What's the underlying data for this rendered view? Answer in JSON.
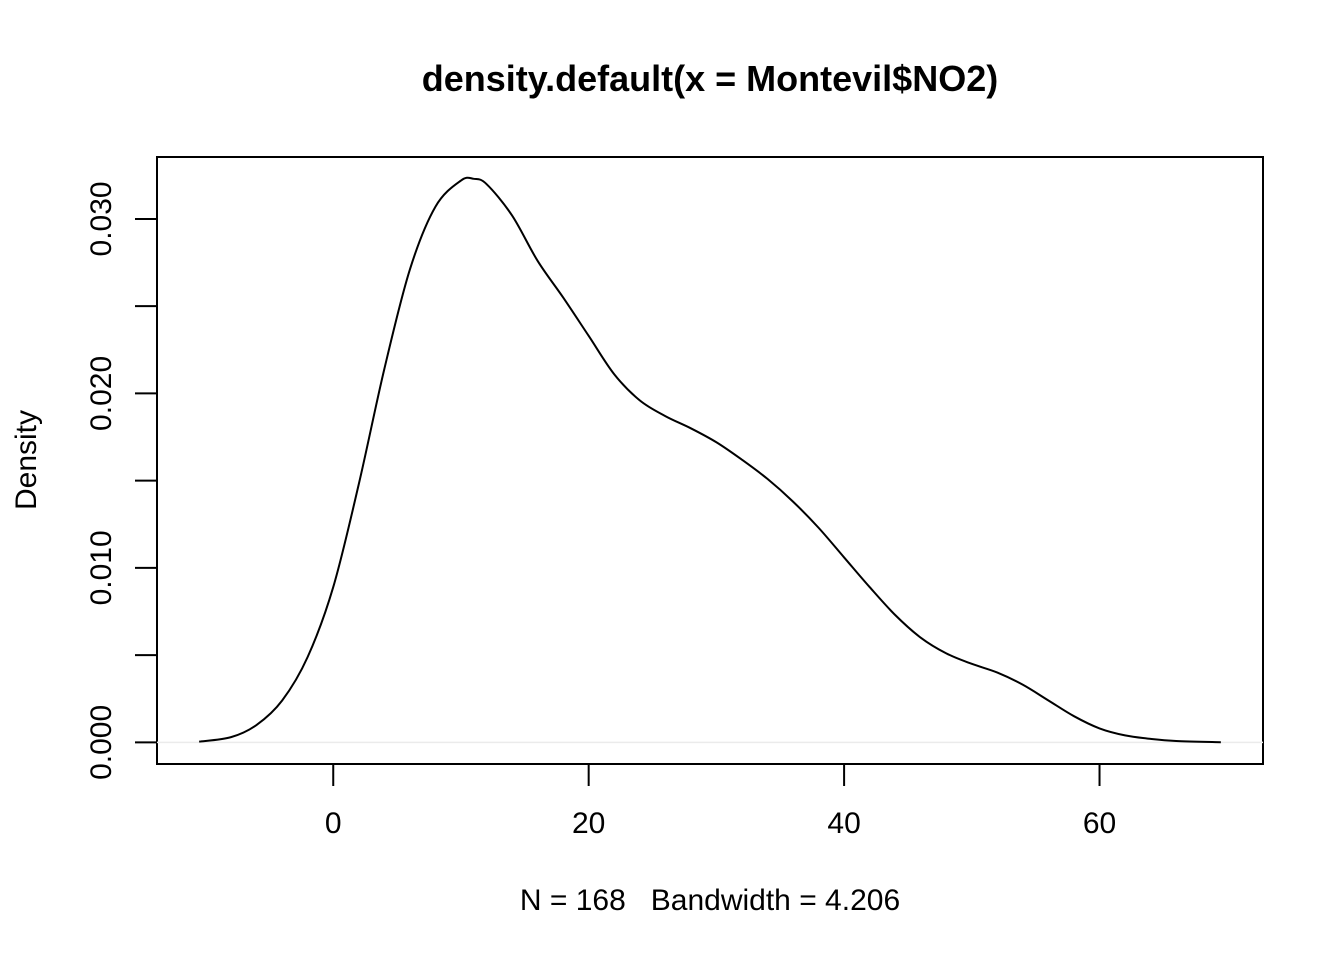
{
  "chart_data": {
    "type": "line",
    "title": "density.default(x = Montevil$NO2)",
    "xlabel": "N = 168   Bandwidth = 4.206",
    "ylabel": "Density",
    "xlim": [
      -13.8,
      72.8
    ],
    "ylim": [
      -0.00124,
      0.03355
    ],
    "xticks": [
      0,
      20,
      40,
      60
    ],
    "xtick_labels": [
      "0",
      "20",
      "40",
      "60"
    ],
    "yticks": [
      0.0,
      0.005,
      0.01,
      0.015,
      0.02,
      0.025,
      0.03
    ],
    "yticks_labels": [
      "0.000",
      "",
      "0.010",
      "",
      "0.020",
      "",
      "0.030"
    ],
    "grid": false,
    "baseline": 0,
    "series": [
      {
        "color": "#000000",
        "x": [
          -10.5,
          -8,
          -6,
          -4,
          -2,
          0,
          2,
          4,
          6,
          8,
          10,
          11,
          12,
          14,
          16,
          18,
          20,
          22,
          24,
          26,
          28,
          30,
          32,
          34,
          36,
          38,
          40,
          42,
          44,
          46,
          48,
          50,
          52,
          54,
          56,
          58,
          60,
          62,
          64,
          66,
          69.5
        ],
        "y": [
          4e-05,
          0.0003,
          0.001,
          0.0024,
          0.0049,
          0.0089,
          0.0148,
          0.0214,
          0.0271,
          0.0307,
          0.0322,
          0.0323,
          0.032,
          0.0302,
          0.0276,
          0.0255,
          0.0233,
          0.0211,
          0.0196,
          0.0187,
          0.018,
          0.0172,
          0.0162,
          0.0151,
          0.0138,
          0.0123,
          0.0106,
          0.0089,
          0.0073,
          0.006,
          0.0051,
          0.0045,
          0.004,
          0.0033,
          0.0024,
          0.0015,
          0.0008,
          0.0004,
          0.0002,
          8e-05,
          1e-05
        ]
      }
    ]
  }
}
